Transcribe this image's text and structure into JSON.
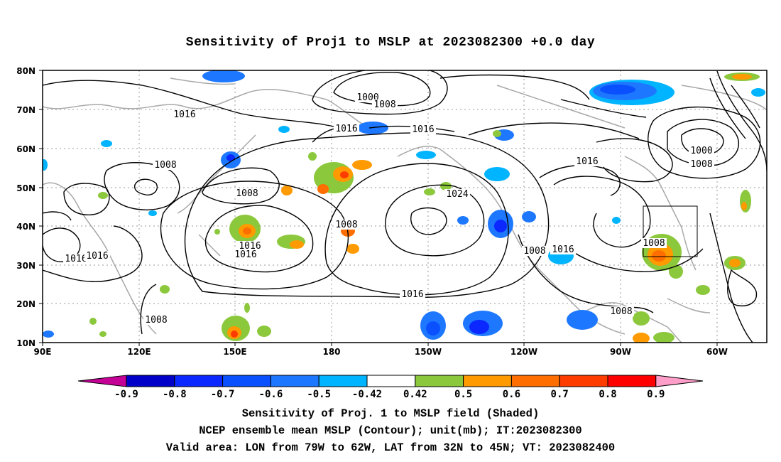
{
  "title": "Sensitivity of Proj1 to MSLP at 2023082300 +0.0 day",
  "lat_labels": [
    "80N",
    "70N",
    "60N",
    "50N",
    "40N",
    "30N",
    "20N",
    "10N"
  ],
  "lon_labels": [
    "90E",
    "120E",
    "150E",
    "180",
    "150W",
    "120W",
    "90W",
    "60W"
  ],
  "contour_labels": [
    {
      "text": "1000"
    },
    {
      "text": "1008"
    },
    {
      "text": "1016"
    },
    {
      "text": "1016"
    },
    {
      "text": "1016"
    },
    {
      "text": "1008"
    },
    {
      "text": "1008"
    },
    {
      "text": "1008"
    },
    {
      "text": "1016"
    },
    {
      "text": "1016"
    },
    {
      "text": "1024"
    },
    {
      "text": "1016"
    },
    {
      "text": "1016"
    },
    {
      "text": "1008"
    },
    {
      "text": "1008"
    },
    {
      "text": "1016"
    },
    {
      "text": "1000"
    },
    {
      "text": "1008"
    },
    {
      "text": "1016"
    },
    {
      "text": "1008"
    },
    {
      "text": "1008"
    },
    {
      "text": "1016"
    }
  ],
  "colorbar": {
    "labels": [
      "-0.9",
      "-0.8",
      "-0.7",
      "-0.6",
      "-0.5",
      "-0.42",
      "0.42",
      "0.5",
      "0.6",
      "0.7",
      "0.8",
      "0.9"
    ],
    "colors": [
      "#c40096",
      "#0000c8",
      "#0a28ff",
      "#0a50ff",
      "#1e78ff",
      "#00b4ff",
      "#ffffff",
      "#8cc83c",
      "#ff9a00",
      "#ff6e00",
      "#ff3c00",
      "#ff0000",
      "#ff9ec8"
    ]
  },
  "captions": [
    "Sensitivity of Proj. 1 to MSLP field (Shaded)",
    "NCEP ensemble mean MSLP (Contour); unit(mb); IT:2023082300",
    "Valid area: LON from 79W to 62W, LAT from 32N to 45N; VT: 2023082400"
  ]
}
